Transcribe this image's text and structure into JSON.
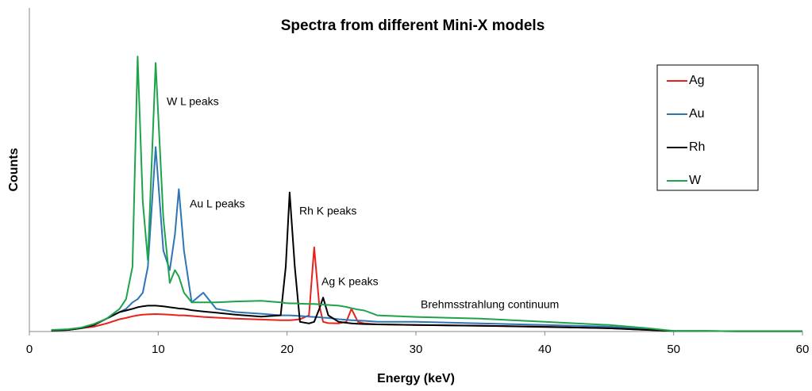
{
  "chart_data": {
    "type": "line",
    "title": "Spectra from different Mini-X models",
    "x_label": "Energy (keV)",
    "y_label": "Counts",
    "xlim": [
      0,
      60
    ],
    "xticks": [
      0,
      10,
      20,
      30,
      40,
      50,
      60
    ],
    "ylim": [
      0,
      100
    ],
    "grid": false,
    "legend": "upper right",
    "annotations": [
      "W L peaks",
      "Au L peaks",
      "Rh K peaks",
      "Ag K peaks",
      "Brehmsstrahlung continuum"
    ],
    "x": [
      1.7,
      3,
      4,
      5,
      6,
      7,
      7.5,
      8,
      8.4,
      8.8,
      9.2,
      9.8,
      10.4,
      10.9,
      11.3,
      11.6,
      12,
      12.6,
      13.5,
      14.5,
      16,
      18,
      19.5,
      19.9,
      20.2,
      20.6,
      21,
      21.7,
      22.1,
      22.5,
      22.8,
      23.2,
      24,
      24.6,
      25,
      25.5,
      26,
      27,
      30,
      35,
      40,
      45,
      48,
      50,
      55,
      60
    ],
    "series": [
      {
        "name": "Ag",
        "color": "#e8211c",
        "values": [
          0.3,
          0.5,
          1,
          1.5,
          2.5,
          3.8,
          4.2,
          4.7,
          5,
          5.2,
          5.3,
          5.4,
          5.3,
          5.2,
          5.1,
          5,
          5,
          4.8,
          4.5,
          4.3,
          4,
          3.7,
          3.5,
          3.5,
          3.5,
          3.6,
          3.8,
          5,
          26,
          8,
          3,
          2.6,
          2.5,
          3,
          7,
          3,
          2.5,
          2.2,
          2,
          1.8,
          1.5,
          1,
          0.5,
          0.2,
          0.1,
          0.1
        ]
      },
      {
        "name": "Au",
        "color": "#2e75b6",
        "values": [
          0.3,
          0.5,
          1,
          2,
          4,
          6,
          7,
          9,
          10,
          12,
          20,
          57,
          25,
          19,
          30,
          44,
          25,
          9,
          12,
          7,
          6,
          5.5,
          5,
          5,
          5,
          4.9,
          4.8,
          4.6,
          4.5,
          4.4,
          4.3,
          4.2,
          3.8,
          3.6,
          3.5,
          3.4,
          3.3,
          3,
          3,
          2.5,
          2,
          1.5,
          0.8,
          0.2,
          0.1,
          0.1
        ]
      },
      {
        "name": "Rh",
        "color": "#000000",
        "values": [
          0.3,
          0.5,
          1,
          2,
          4,
          6,
          6.5,
          7,
          7.5,
          7.8,
          8,
          8,
          7.8,
          7.5,
          7.3,
          7.1,
          7,
          6.6,
          6.2,
          5.8,
          5.2,
          4.6,
          5,
          20,
          43,
          20,
          3,
          2.5,
          3,
          7,
          10.5,
          5,
          3,
          2.7,
          2.5,
          2.4,
          2.3,
          2.2,
          2,
          1.8,
          1.4,
          1,
          0.5,
          0.2,
          0.1,
          0.1
        ]
      },
      {
        "name": "W",
        "color": "#1fa34a",
        "values": [
          0.5,
          0.7,
          1.2,
          2.3,
          4,
          7,
          10,
          20,
          85,
          40,
          22,
          83,
          35,
          15,
          19,
          17,
          12,
          9,
          9,
          9,
          9.3,
          9.5,
          9,
          8.8,
          8.7,
          8.7,
          8.6,
          8.5,
          8.5,
          8.4,
          8.3,
          8.2,
          8,
          7.6,
          7.2,
          6.8,
          6.5,
          5,
          4.5,
          4,
          3,
          2,
          1,
          0.2,
          0.1,
          0.1
        ]
      }
    ]
  }
}
